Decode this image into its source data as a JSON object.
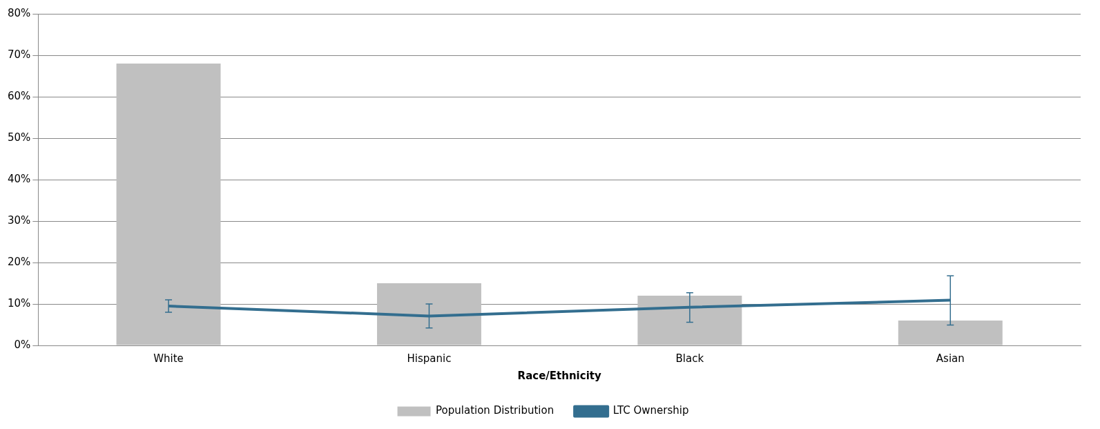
{
  "chart_data": {
    "type": "bar",
    "xlabel": "Race/Ethnicity",
    "categories": [
      "White",
      "Hispanic",
      "Black",
      "Asian"
    ],
    "series": [
      {
        "name": "Population Distribution",
        "color": "#c0c0c0",
        "values": [
          68,
          15,
          12,
          6
        ]
      },
      {
        "name": "LTC Ownership",
        "type": "line",
        "color": "#336e8f",
        "values": [
          9.5,
          7.1,
          9.2,
          10.9
        ],
        "errors": [
          [
            8,
            11
          ],
          [
            4.2,
            10
          ],
          [
            5.6,
            12.7
          ],
          [
            4.9,
            16.8
          ]
        ]
      }
    ],
    "ylim": [
      0,
      80
    ],
    "yticks": [
      {
        "value": 0,
        "label": "0%"
      },
      {
        "value": 10,
        "label": "10%"
      },
      {
        "value": 20,
        "label": "20%"
      },
      {
        "value": 30,
        "label": "30%"
      },
      {
        "value": 40,
        "label": "40%"
      },
      {
        "value": 50,
        "label": "50%"
      },
      {
        "value": 60,
        "label": "60%"
      },
      {
        "value": 70,
        "label": "70%"
      },
      {
        "value": 80,
        "label": "80%"
      }
    ],
    "grid": "y",
    "legend": "bottom",
    "marker": "none",
    "line_style": "solid"
  }
}
